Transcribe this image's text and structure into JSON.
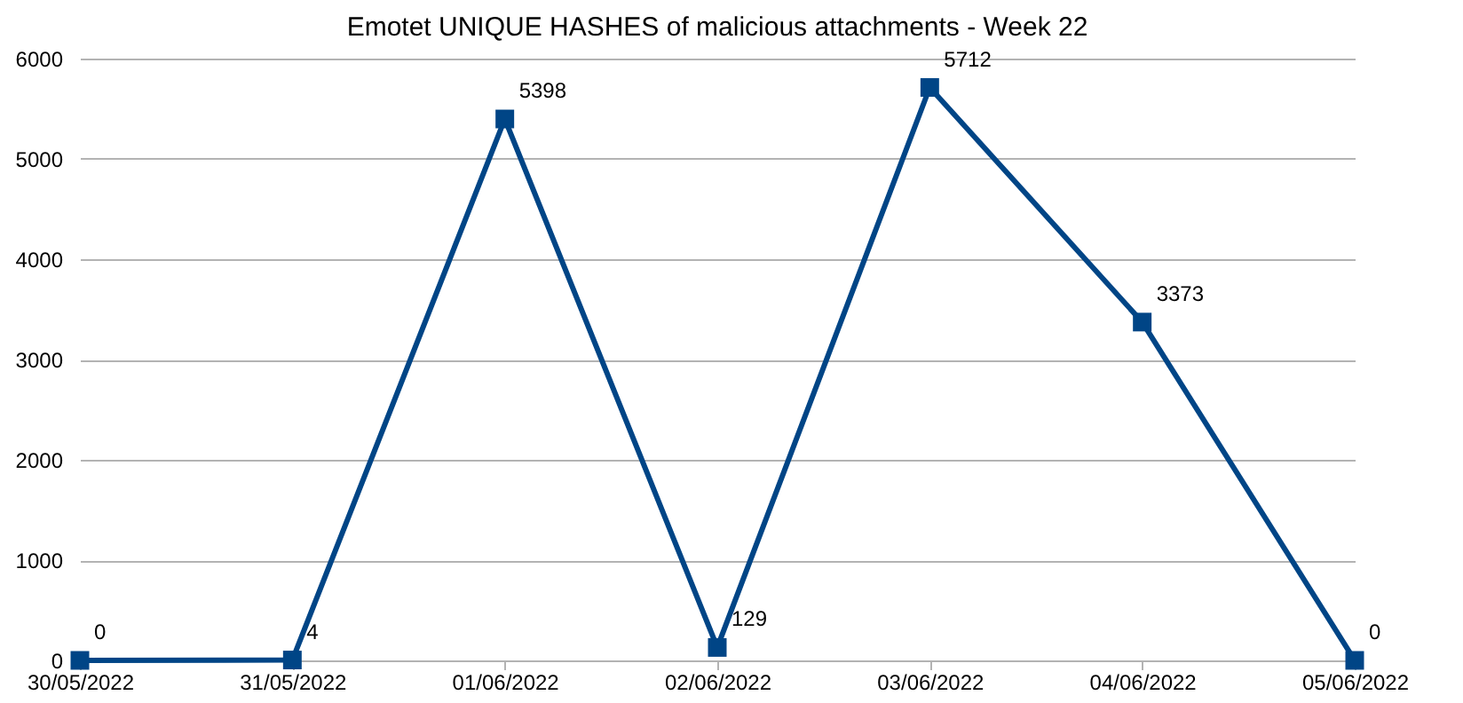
{
  "chart_data": {
    "type": "line",
    "title": "Emotet UNIQUE HASHES of malicious attachments - Week 22",
    "categories": [
      "30/05/2022",
      "31/05/2022",
      "01/06/2022",
      "02/06/2022",
      "03/06/2022",
      "04/06/2022",
      "05/06/2022"
    ],
    "series": [
      {
        "color": "#004586",
        "values": [
          0,
          4,
          5398,
          129,
          5712,
          3373,
          0
        ]
      }
    ],
    "ylim": [
      0,
      6000
    ],
    "yticks": [
      0,
      1000,
      2000,
      3000,
      4000,
      5000,
      6000
    ],
    "grid": "y",
    "marker": "square",
    "line_style": "solid",
    "data_labels": true
  }
}
